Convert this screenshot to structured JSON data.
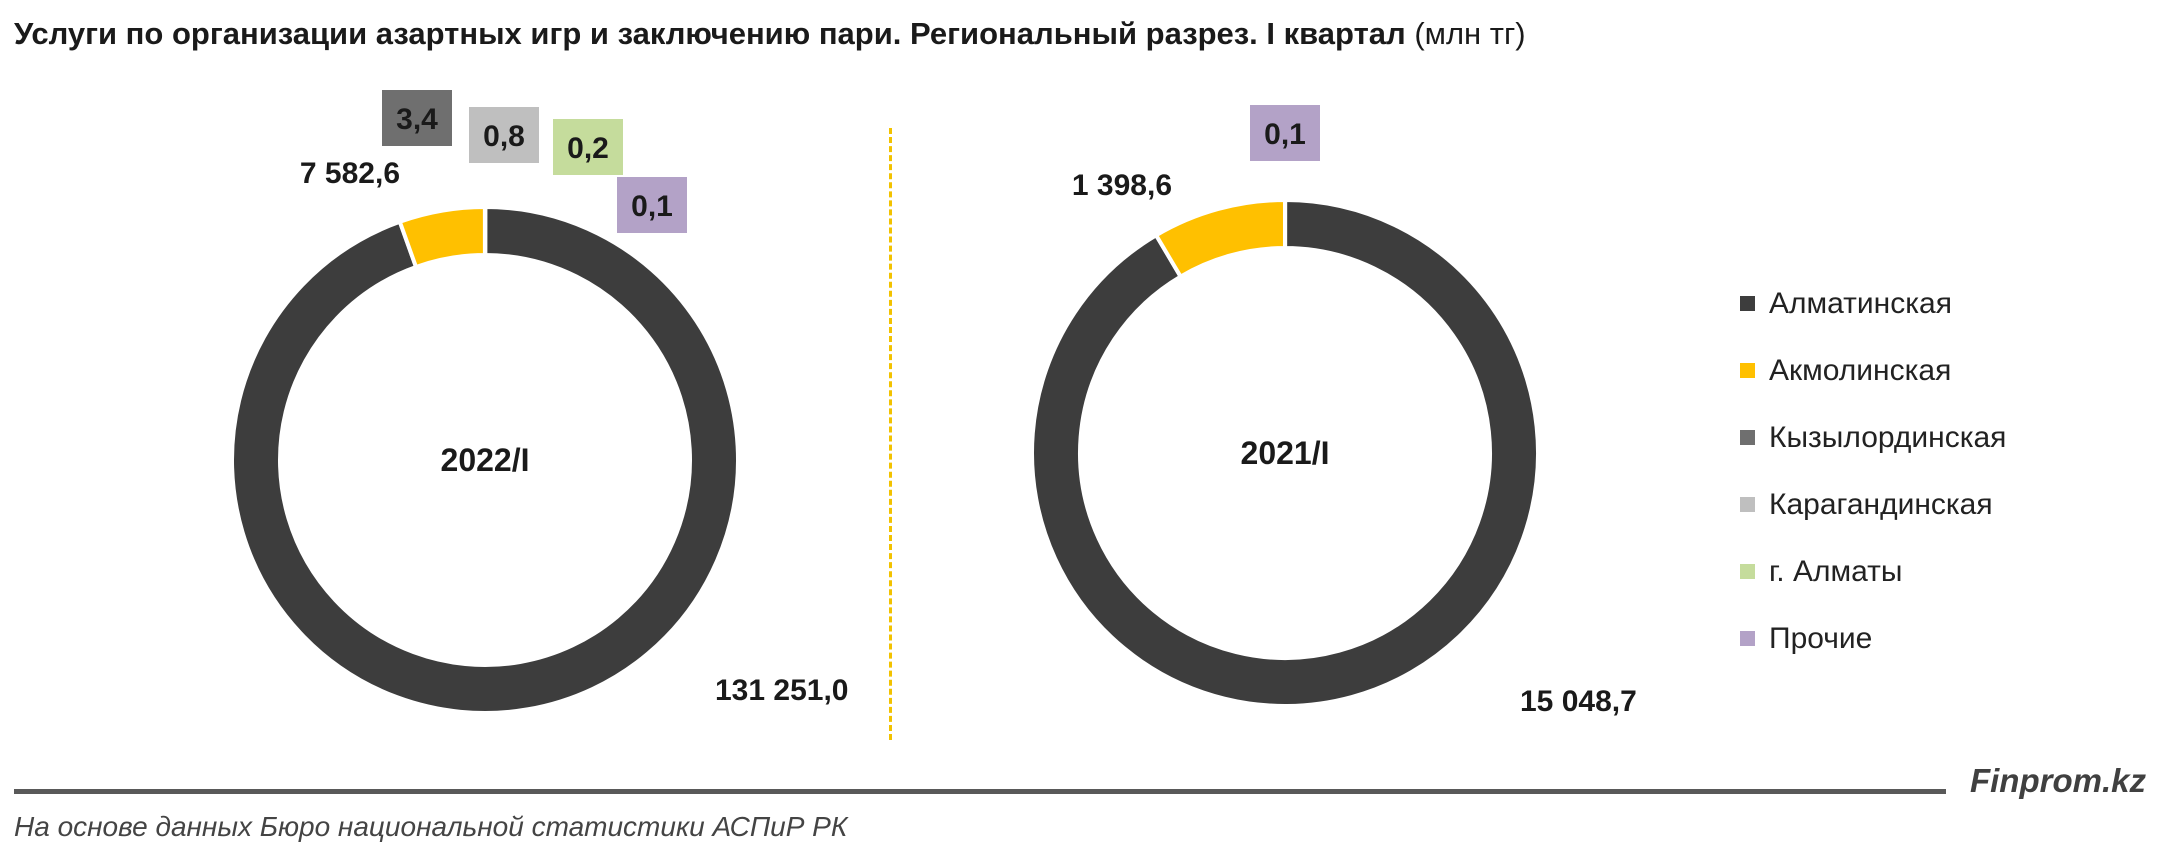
{
  "title": {
    "main": "Услуги по организации азартных игр и заключению пари. Региональный разрез. I квартал",
    "unit": "(млн тг)"
  },
  "chart_data": [
    {
      "type": "pie",
      "variant": "donut",
      "center_label": "2022/I",
      "categories": [
        "Алматинская",
        "Акмолинская",
        "Кызылординская",
        "Карагандинская",
        "г. Алматы",
        "Прочие"
      ],
      "values": [
        131251.0,
        7582.6,
        3.4,
        0.8,
        0.2,
        0.1
      ],
      "value_labels": [
        "131 251,0",
        "7 582,6",
        "3,4",
        "0,8",
        "0,2",
        "0,1"
      ]
    },
    {
      "type": "pie",
      "variant": "donut",
      "center_label": "2021/I",
      "categories": [
        "Алматинская",
        "Акмолинская",
        "Прочие"
      ],
      "values": [
        15048.7,
        1398.6,
        0.1
      ],
      "value_labels": [
        "15 048,7",
        "1 398,6",
        "0,1"
      ]
    }
  ],
  "legend": {
    "position": "right",
    "items": [
      {
        "label": "Алматинская",
        "color": "#3d3d3d"
      },
      {
        "label": "Акмолинская",
        "color": "#ffc000"
      },
      {
        "label": "Кызылординская",
        "color": "#6f6f6f"
      },
      {
        "label": "Карагандинская",
        "color": "#bfbfbf"
      },
      {
        "label": "г. Алматы",
        "color": "#c5dc9c"
      },
      {
        "label": "Прочие",
        "color": "#b3a2c7"
      }
    ]
  },
  "footer": {
    "brand": "Finprom.kz",
    "source": "На основе данных Бюро национальной статистики АСПиР РК"
  }
}
